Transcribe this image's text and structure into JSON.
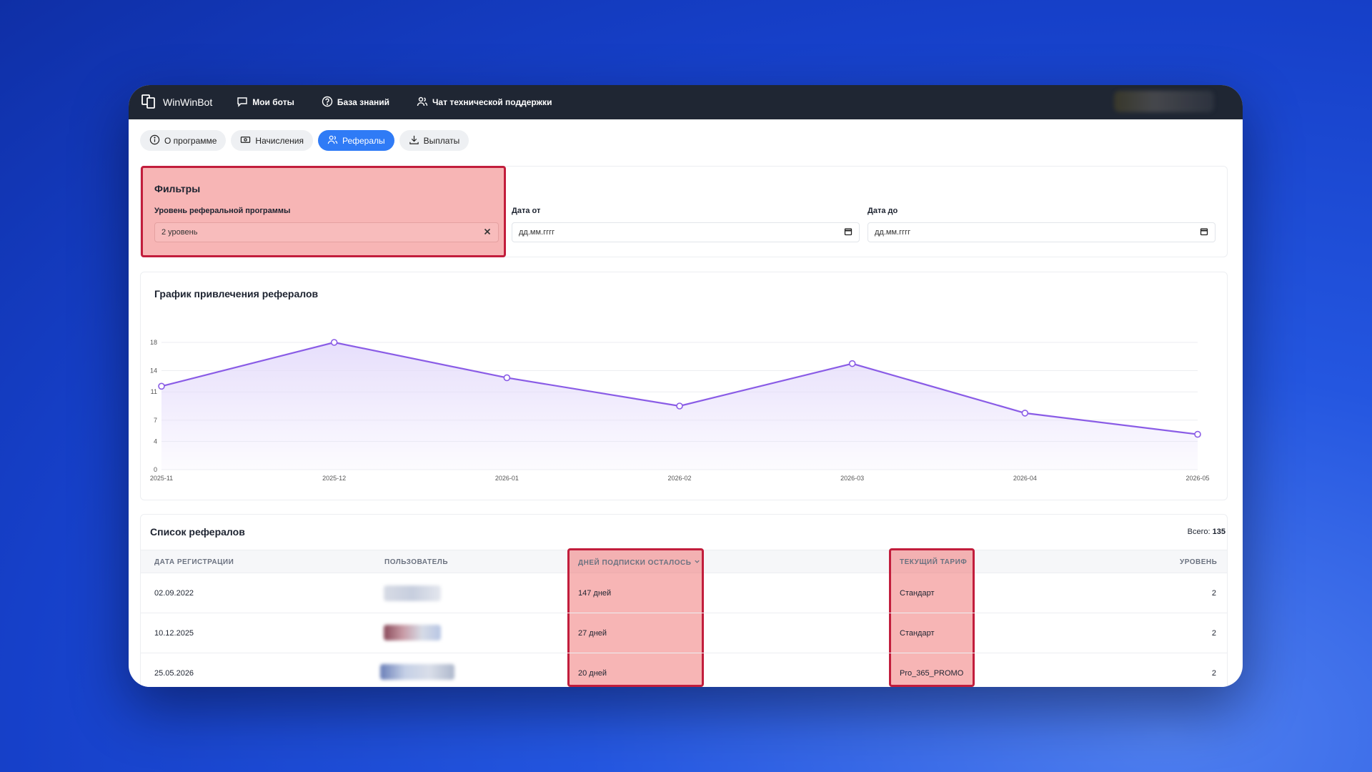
{
  "app": {
    "brand": "WinWinBot"
  },
  "nav": {
    "items": [
      {
        "label": "Мои боты",
        "icon": "chat-bubble-icon"
      },
      {
        "label": "База знаний",
        "icon": "help-circle-icon"
      },
      {
        "label": "Чат технической поддержки",
        "icon": "users-icon"
      }
    ]
  },
  "tabs": [
    {
      "label": "О программе",
      "icon": "info-icon",
      "active": false
    },
    {
      "label": "Начисления",
      "icon": "cash-icon",
      "active": false
    },
    {
      "label": "Рефералы",
      "icon": "users-icon",
      "active": true
    },
    {
      "label": "Выплаты",
      "icon": "download-icon",
      "active": false
    }
  ],
  "filters": {
    "title": "Фильтры",
    "level_label": "Уровень реферальной программы",
    "level_value": "2 уровень",
    "date_from_label": "Дата от",
    "date_from_placeholder": "дд.мм.гггг",
    "date_to_label": "Дата до",
    "date_to_placeholder": "дд.мм.гггг"
  },
  "chart": {
    "title": "График привлечения рефералов"
  },
  "chart_data": {
    "type": "area",
    "title": "График привлечения рефералов",
    "x": [
      "2025-11",
      "2025-12",
      "2026-01",
      "2026-02",
      "2026-03",
      "2026-04",
      "2026-05"
    ],
    "values": [
      11.8,
      18,
      13,
      9,
      15,
      8,
      5
    ],
    "yticks": [
      0,
      4,
      7,
      11,
      14,
      18
    ],
    "ylim": [
      0,
      18
    ],
    "grid": true,
    "colors": {
      "line": "#8a5ce6",
      "fill": "#e4dbfb"
    }
  },
  "list": {
    "title": "Список рефералов",
    "total_label": "Всего:",
    "total_value": "135",
    "columns": {
      "reg_date": "ДАТА РЕГИСТРАЦИИ",
      "user": "ПОЛЬЗОВАТЕЛЬ",
      "days_left": "ДНЕЙ ПОДПИСКИ ОСТАЛОСЬ",
      "tariff": "ТЕКУЩИЙ ТАРИФ",
      "level": "УРОВЕНЬ"
    },
    "rows": [
      {
        "reg_date": "02.09.2022",
        "days_left": "147 дней",
        "tariff": "Стандарт",
        "level": "2"
      },
      {
        "reg_date": "10.12.2025",
        "days_left": "27 дней",
        "tariff": "Стандарт",
        "level": "2"
      },
      {
        "reg_date": "25.05.2026",
        "days_left": "20 дней",
        "tariff": "Pro_365_PROMO",
        "level": "2"
      }
    ]
  },
  "colors": {
    "accent": "#2f7bf6",
    "highlight_border": "#c21d3c",
    "topbar": "#1f2633"
  }
}
